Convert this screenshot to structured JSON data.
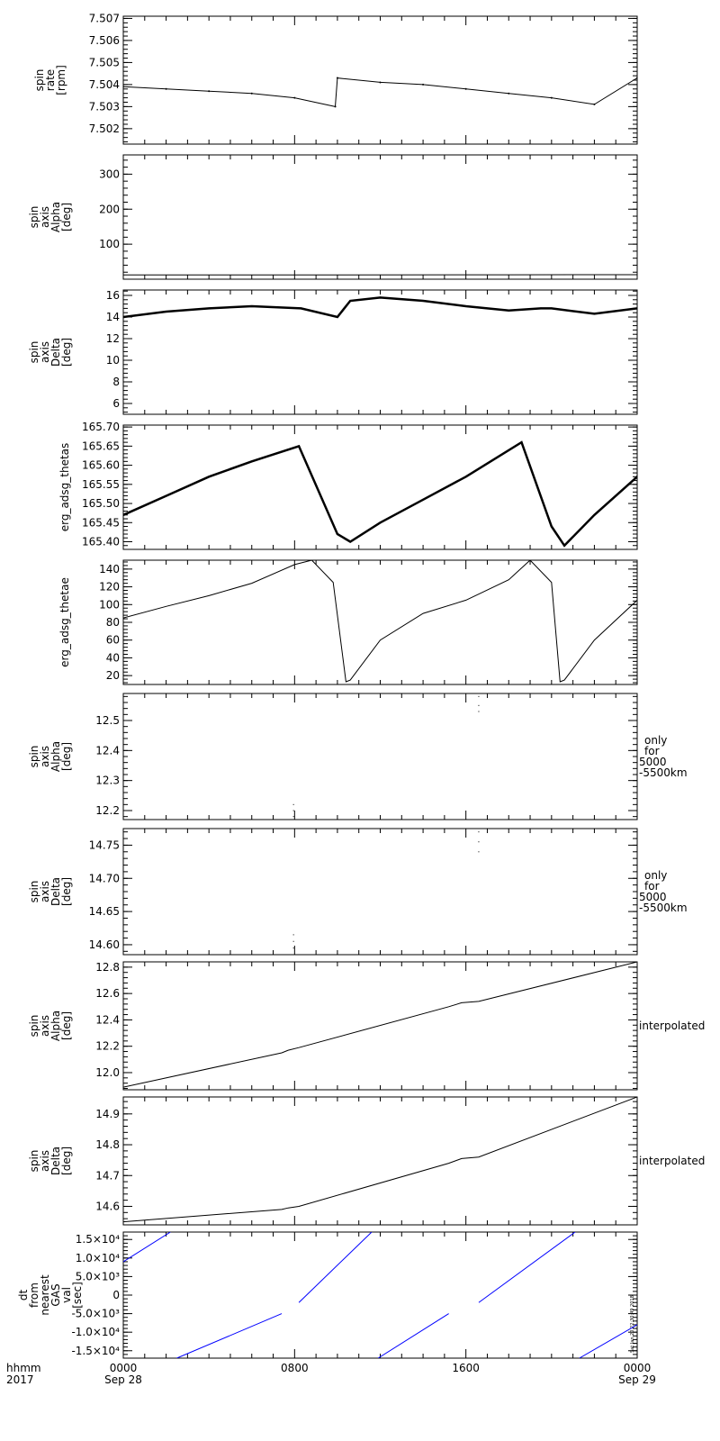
{
  "chart_data": [
    {
      "type": "scatter",
      "ylabel": "spin rate [rpm]",
      "ylim": [
        7.5013,
        7.5071
      ],
      "yticks": [
        7.502,
        7.503,
        7.504,
        7.505,
        7.506,
        7.507
      ],
      "ytick_labels": [
        "7.502",
        "7.503",
        "7.504",
        "7.505",
        "7.506",
        "7.507"
      ],
      "series": [
        {
          "color": "#000000",
          "style": "dots",
          "x": [
            0,
            2,
            4,
            6,
            8,
            9.9,
            10,
            12,
            14,
            16,
            18,
            20,
            22,
            24,
            24.8,
            25
          ],
          "y": [
            7.5039,
            7.5038,
            7.5037,
            7.5036,
            7.5034,
            7.503,
            7.5043,
            7.5041,
            7.504,
            7.5038,
            7.5036,
            7.5034,
            7.5031,
            7.5043,
            7.5036,
            7.5036
          ]
        }
      ]
    },
    {
      "type": "scatter",
      "ylabel": "spin axis Alpha [deg]",
      "ylim": [
        0,
        355
      ],
      "yticks": [
        100,
        200,
        300
      ],
      "ytick_labels": [
        "100",
        "200",
        "300"
      ],
      "series": [
        {
          "color": "#000000",
          "style": "line",
          "x": [
            0,
            8,
            10,
            16,
            18,
            25
          ],
          "y": [
            12,
            12.1,
            12.2,
            12.5,
            12.6,
            12.8
          ]
        }
      ]
    },
    {
      "type": "scatter",
      "ylabel": "spin axis Delta [deg]",
      "ylim": [
        5,
        16.5
      ],
      "yticks": [
        6,
        8,
        10,
        12,
        14,
        16
      ],
      "ytick_labels": [
        "6",
        "8",
        "10",
        "12",
        "14",
        "16"
      ],
      "series": [
        {
          "color": "#000000",
          "style": "noisy",
          "x": [
            0,
            2,
            4,
            6,
            8.3,
            10,
            10.6,
            12,
            14,
            16,
            18,
            19.5,
            20,
            22,
            24,
            25
          ],
          "y": [
            14.0,
            14.5,
            14.8,
            15.0,
            14.8,
            14.0,
            15.5,
            15.8,
            15.5,
            15.0,
            14.6,
            14.8,
            14.8,
            14.3,
            14.8,
            15.3
          ]
        }
      ]
    },
    {
      "type": "scatter",
      "ylabel": "erg_adsg_thetas",
      "ylim": [
        165.38,
        165.705
      ],
      "yticks": [
        165.4,
        165.45,
        165.5,
        165.55,
        165.6,
        165.65,
        165.7
      ],
      "ytick_labels": [
        "165.40",
        "165.45",
        "165.50",
        "165.55",
        "165.60",
        "165.65",
        "165.70"
      ],
      "series": [
        {
          "color": "#000000",
          "style": "noisy",
          "x": [
            0,
            2,
            4,
            6,
            8.2,
            10,
            10.6,
            12,
            14,
            16,
            18.6,
            20,
            20.6,
            22,
            24,
            25
          ],
          "y": [
            165.47,
            165.52,
            165.57,
            165.61,
            165.65,
            165.42,
            165.4,
            165.45,
            165.51,
            165.57,
            165.66,
            165.44,
            165.39,
            165.47,
            165.57,
            165.65
          ]
        }
      ]
    },
    {
      "type": "line",
      "ylabel": "erg_adsg_thetae",
      "ylim": [
        10,
        150
      ],
      "yticks": [
        20,
        40,
        60,
        80,
        100,
        120,
        140
      ],
      "ytick_labels": [
        "20",
        "40",
        "60",
        "80",
        "100",
        "120",
        "140"
      ],
      "series": [
        {
          "color": "#000000",
          "style": "line",
          "x": [
            0,
            2,
            4,
            6,
            8,
            8.8,
            9.8,
            10.4,
            10.6,
            12,
            14,
            16,
            18,
            19,
            20,
            20.4,
            20.6,
            22,
            24,
            25
          ],
          "y": [
            85,
            98,
            110,
            124,
            145,
            150,
            125,
            13,
            15,
            60,
            90,
            105,
            128,
            150,
            125,
            13,
            15,
            60,
            105,
            140
          ]
        }
      ]
    },
    {
      "type": "scatter",
      "ylabel": "spin axis Alpha [deg]",
      "ylim": [
        12.17,
        12.59
      ],
      "yticks": [
        12.2,
        12.3,
        12.4,
        12.5
      ],
      "ytick_labels": [
        "12.2",
        "12.3",
        "12.4",
        "12.5"
      ],
      "annotation": "only for 5000 -5500km",
      "series": [
        {
          "color": "#000000",
          "style": "points",
          "x": [
            7.95,
            7.95,
            7.95,
            16.6,
            16.6,
            16.6
          ],
          "y": [
            12.18,
            12.2,
            12.22,
            12.53,
            12.55,
            12.58
          ]
        }
      ]
    },
    {
      "type": "scatter",
      "ylabel": "spin axis Delta [deg]",
      "ylim": [
        14.585,
        14.775
      ],
      "yticks": [
        14.6,
        14.65,
        14.7,
        14.75
      ],
      "ytick_labels": [
        "14.60",
        "14.65",
        "14.70",
        "14.75"
      ],
      "annotation": "only for 5000 -5500km",
      "series": [
        {
          "color": "#000000",
          "style": "points",
          "x": [
            7.95,
            7.95,
            7.95,
            16.6,
            16.6,
            16.6
          ],
          "y": [
            14.595,
            14.605,
            14.615,
            14.74,
            14.755,
            14.77
          ]
        }
      ]
    },
    {
      "type": "line",
      "ylabel": "spin axis Alpha [deg]",
      "ylim": [
        11.87,
        12.84
      ],
      "yticks": [
        12.0,
        12.2,
        12.4,
        12.6,
        12.8
      ],
      "ytick_labels": [
        "12.0",
        "12.2",
        "12.4",
        "12.6",
        "12.8"
      ],
      "annotation": "interpolated",
      "series": [
        {
          "color": "#000000",
          "style": "line",
          "x": [
            0,
            7.4,
            7.7,
            8.2,
            15.2,
            15.8,
            16.6,
            24
          ],
          "y": [
            11.89,
            12.15,
            12.17,
            12.19,
            12.5,
            12.53,
            12.54,
            12.84
          ]
        }
      ]
    },
    {
      "type": "line",
      "ylabel": "spin axis Delta [deg]",
      "ylim": [
        14.54,
        14.955
      ],
      "yticks": [
        14.6,
        14.7,
        14.8,
        14.9
      ],
      "ytick_labels": [
        "14.6",
        "14.7",
        "14.8",
        "14.9"
      ],
      "annotation": "interpolated",
      "series": [
        {
          "color": "#000000",
          "style": "line",
          "x": [
            0,
            7.4,
            7.7,
            8.2,
            15.2,
            15.8,
            16.6,
            24
          ],
          "y": [
            14.55,
            14.59,
            14.595,
            14.6,
            14.74,
            14.755,
            14.76,
            14.955
          ]
        }
      ]
    },
    {
      "type": "line",
      "ylabel": "dt from nearest GAS val [sec]",
      "ylim": [
        -17000,
        17000
      ],
      "yticks": [
        -15000,
        -10000,
        -5000,
        0,
        5000,
        10000,
        15000
      ],
      "ytick_labels": [
        "-1.5×10⁴",
        "-1.0×10⁴",
        "-5.0×10³",
        "0",
        "5.0×10³",
        "1.0×10⁴",
        "1.5×10⁴"
      ],
      "stamp": "Sat Jan 20 22:30:49 2018",
      "series": [
        {
          "color": "#0000ff",
          "style": "segments",
          "segments": [
            [
              [
                0,
                9000
              ],
              [
                2.2,
                17000
              ]
            ],
            [
              [
                2.5,
                -17000
              ],
              [
                7.4,
                -5000
              ]
            ],
            [
              [
                8.2,
                -2000
              ],
              [
                11.6,
                17000
              ]
            ],
            [
              [
                11.9,
                -17000
              ],
              [
                15.2,
                -5000
              ]
            ],
            [
              [
                16.6,
                -2000
              ],
              [
                21.1,
                17000
              ]
            ],
            [
              [
                21.3,
                -17000
              ],
              [
                24,
                -8000
              ]
            ]
          ]
        }
      ]
    }
  ],
  "xaxis": {
    "xlim": [
      0,
      24
    ],
    "major_ticks": [
      0,
      8,
      16,
      24
    ],
    "tick_labels": [
      {
        "time": "0000",
        "date": "Sep 28"
      },
      {
        "time": "0800",
        "date": ""
      },
      {
        "time": "1600",
        "date": ""
      },
      {
        "time": "0000",
        "date": "Sep 29"
      }
    ],
    "row_label": "hhmm",
    "year": "2017"
  }
}
